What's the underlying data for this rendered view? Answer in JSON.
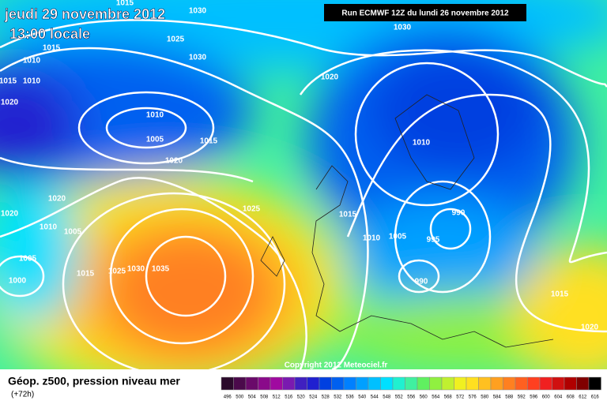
{
  "header": {
    "date": "jeudi 29 novembre 2012",
    "time": "13:00 locale",
    "run": "Run ECMWF 12Z du lundi 26 novembre 2012"
  },
  "map": {
    "isobar_labels": [
      "1015",
      "1030",
      "1025",
      "1030",
      "1030",
      "1020",
      "1010",
      "1005",
      "1015",
      "1020",
      "1010",
      "1025",
      "1020",
      "1010",
      "1005",
      "1005",
      "1000",
      "1015",
      "1025",
      "1030",
      "1035",
      "1015",
      "1010",
      "1005",
      "995",
      "990",
      "990",
      "1015",
      "1020",
      "1020",
      "1015",
      "1010",
      "1010",
      "1015",
      "1020"
    ],
    "copyright": "Copyright 2012 Meteociel.fr"
  },
  "footer": {
    "title": "Géop. z500, pression niveau mer",
    "lead": "(+72h)",
    "scale": {
      "labels": [
        "496",
        "500",
        "504",
        "508",
        "512",
        "516",
        "520",
        "524",
        "528",
        "532",
        "536",
        "540",
        "544",
        "548",
        "552",
        "556",
        "560",
        "564",
        "568",
        "572",
        "576",
        "580",
        "584",
        "588",
        "592",
        "596",
        "600",
        "604",
        "608",
        "612",
        "616"
      ],
      "colors": [
        "#2b0a2b",
        "#4b0a4b",
        "#6a0a6a",
        "#8a0a8a",
        "#a00aa0",
        "#7a1ab0",
        "#4020c0",
        "#2020d0",
        "#0040e0",
        "#0060f0",
        "#0080ff",
        "#00a0ff",
        "#00c0ff",
        "#00e0ff",
        "#20f0d0",
        "#40f0a0",
        "#60f060",
        "#90f040",
        "#c0f030",
        "#f0f020",
        "#ffe020",
        "#ffc020",
        "#ffa020",
        "#ff8020",
        "#ff6020",
        "#ff4020",
        "#f02020",
        "#d01010",
        "#b00000",
        "#800000",
        "#000000"
      ]
    }
  }
}
